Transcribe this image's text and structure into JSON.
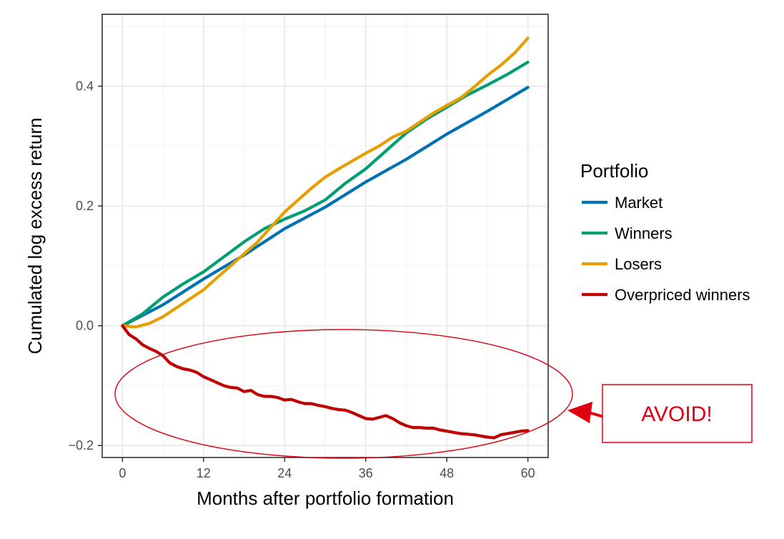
{
  "chart_data": {
    "type": "line",
    "title": "",
    "xlabel": "Months after portfolio formation",
    "ylabel": "Cumulated log excess return",
    "xlim": [
      -3,
      63
    ],
    "ylim": [
      -0.22,
      0.52
    ],
    "xticks": [
      0,
      12,
      24,
      36,
      48,
      60
    ],
    "xtick_labels": [
      "0",
      "12",
      "24",
      "36",
      "48",
      "60"
    ],
    "yticks": [
      -0.2,
      0.0,
      0.2,
      0.4
    ],
    "ytick_labels": [
      "−0.2",
      "0.0",
      "0.2",
      "0.4"
    ],
    "grid": true,
    "legend": {
      "title": "Portfolio",
      "placement": "right"
    },
    "series": [
      {
        "name": "Market",
        "color": "#0072b2",
        "points": [
          [
            0,
            0.0
          ],
          [
            6,
            0.035
          ],
          [
            12,
            0.078
          ],
          [
            18,
            0.118
          ],
          [
            24,
            0.162
          ],
          [
            30,
            0.198
          ],
          [
            36,
            0.24
          ],
          [
            42,
            0.278
          ],
          [
            48,
            0.32
          ],
          [
            54,
            0.358
          ],
          [
            60,
            0.398
          ]
        ]
      },
      {
        "name": "Winners",
        "color": "#009e73",
        "points": [
          [
            0,
            0.0
          ],
          [
            3,
            0.02
          ],
          [
            6,
            0.048
          ],
          [
            9,
            0.07
          ],
          [
            12,
            0.09
          ],
          [
            15,
            0.115
          ],
          [
            18,
            0.14
          ],
          [
            21,
            0.162
          ],
          [
            24,
            0.178
          ],
          [
            27,
            0.192
          ],
          [
            30,
            0.21
          ],
          [
            33,
            0.238
          ],
          [
            36,
            0.262
          ],
          [
            39,
            0.292
          ],
          [
            42,
            0.322
          ],
          [
            45,
            0.345
          ],
          [
            48,
            0.365
          ],
          [
            51,
            0.385
          ],
          [
            54,
            0.402
          ],
          [
            57,
            0.42
          ],
          [
            60,
            0.44
          ]
        ]
      },
      {
        "name": "Losers",
        "color": "#e69f00",
        "points": [
          [
            0,
            0.0
          ],
          [
            2,
            -0.002
          ],
          [
            4,
            0.004
          ],
          [
            6,
            0.015
          ],
          [
            8,
            0.03
          ],
          [
            10,
            0.045
          ],
          [
            12,
            0.06
          ],
          [
            14,
            0.08
          ],
          [
            16,
            0.1
          ],
          [
            18,
            0.12
          ],
          [
            20,
            0.14
          ],
          [
            22,
            0.165
          ],
          [
            24,
            0.19
          ],
          [
            26,
            0.21
          ],
          [
            28,
            0.23
          ],
          [
            30,
            0.248
          ],
          [
            32,
            0.262
          ],
          [
            34,
            0.275
          ],
          [
            36,
            0.288
          ],
          [
            38,
            0.3
          ],
          [
            40,
            0.315
          ],
          [
            42,
            0.325
          ],
          [
            44,
            0.34
          ],
          [
            46,
            0.355
          ],
          [
            48,
            0.368
          ],
          [
            50,
            0.38
          ],
          [
            52,
            0.398
          ],
          [
            54,
            0.418
          ],
          [
            56,
            0.435
          ],
          [
            58,
            0.455
          ],
          [
            60,
            0.48
          ]
        ]
      },
      {
        "name": "Overpriced winners",
        "color": "#c00000",
        "points": [
          [
            0,
            0.0
          ],
          [
            1,
            -0.015
          ],
          [
            2,
            -0.022
          ],
          [
            3,
            -0.032
          ],
          [
            4,
            -0.038
          ],
          [
            5,
            -0.043
          ],
          [
            6,
            -0.05
          ],
          [
            7,
            -0.062
          ],
          [
            8,
            -0.068
          ],
          [
            9,
            -0.072
          ],
          [
            10,
            -0.074
          ],
          [
            11,
            -0.078
          ],
          [
            12,
            -0.085
          ],
          [
            13,
            -0.09
          ],
          [
            14,
            -0.095
          ],
          [
            15,
            -0.1
          ],
          [
            16,
            -0.103
          ],
          [
            17,
            -0.104
          ],
          [
            18,
            -0.11
          ],
          [
            19,
            -0.108
          ],
          [
            20,
            -0.115
          ],
          [
            21,
            -0.118
          ],
          [
            22,
            -0.118
          ],
          [
            23,
            -0.12
          ],
          [
            24,
            -0.124
          ],
          [
            25,
            -0.123
          ],
          [
            26,
            -0.127
          ],
          [
            27,
            -0.13
          ],
          [
            28,
            -0.13
          ],
          [
            29,
            -0.133
          ],
          [
            30,
            -0.135
          ],
          [
            31,
            -0.138
          ],
          [
            32,
            -0.14
          ],
          [
            33,
            -0.141
          ],
          [
            34,
            -0.145
          ],
          [
            35,
            -0.15
          ],
          [
            36,
            -0.155
          ],
          [
            37,
            -0.156
          ],
          [
            38,
            -0.153
          ],
          [
            39,
            -0.15
          ],
          [
            40,
            -0.155
          ],
          [
            41,
            -0.162
          ],
          [
            42,
            -0.167
          ],
          [
            43,
            -0.17
          ],
          [
            44,
            -0.17
          ],
          [
            45,
            -0.171
          ],
          [
            46,
            -0.171
          ],
          [
            47,
            -0.174
          ],
          [
            48,
            -0.176
          ],
          [
            49,
            -0.178
          ],
          [
            50,
            -0.18
          ],
          [
            51,
            -0.181
          ],
          [
            52,
            -0.182
          ],
          [
            53,
            -0.184
          ],
          [
            54,
            -0.186
          ],
          [
            55,
            -0.187
          ],
          [
            56,
            -0.182
          ],
          [
            57,
            -0.18
          ],
          [
            58,
            -0.178
          ],
          [
            59,
            -0.176
          ],
          [
            60,
            -0.175
          ]
        ]
      }
    ],
    "annotations": [
      {
        "type": "ellipse",
        "target": "Overpriced winners",
        "color": "#e0000f"
      },
      {
        "type": "callout",
        "text": "AVOID!",
        "color": "#e0000f"
      }
    ]
  }
}
